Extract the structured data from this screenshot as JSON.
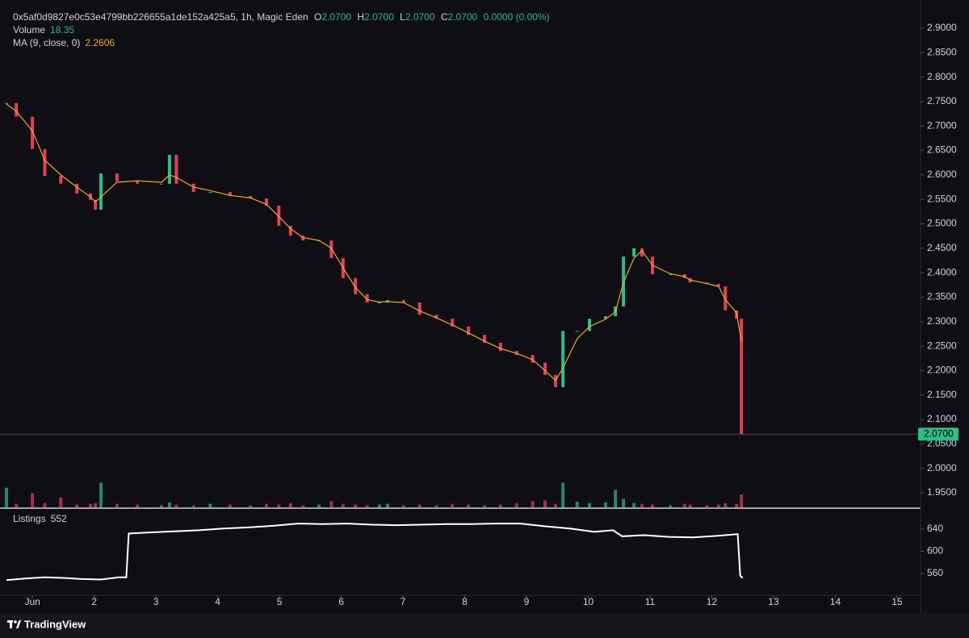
{
  "header": {
    "symbol": "0x5af0d9827e0c53e4799bb226655a1de152a425a5, 1h, Magic Eden",
    "o_label": "O",
    "o_value": "2.0700",
    "h_label": "H",
    "h_value": "2.0700",
    "l_label": "L",
    "l_value": "2.0700",
    "c_label": "C",
    "c_value": "2.0700",
    "change": "0.0000 (0.00%)",
    "volume_label": "Volume",
    "volume_value": "18.35",
    "ma_label": "MA (9, close, 0)",
    "ma_value": "2.2606",
    "brand": "TradingView"
  },
  "chart_data": [
    {
      "type": "candlestick",
      "xlim": [
        0.58,
        15.38
      ],
      "ylim": [
        1.9203,
        2.9445
      ],
      "xticks": [
        {
          "value": 1,
          "label": "Jun"
        },
        2,
        3,
        4,
        5,
        6,
        7,
        8,
        9,
        10,
        11,
        12,
        13,
        14,
        15
      ],
      "yticks": [
        {
          "value": 1.95,
          "label": "1.9500"
        },
        {
          "value": 2,
          "label": "2.0000"
        },
        {
          "value": 2.05,
          "label": "2.0500"
        },
        {
          "value": 2.1,
          "label": "2.1000"
        },
        {
          "value": 2.15,
          "label": "2.1500"
        },
        {
          "value": 2.2,
          "label": "2.2000"
        },
        {
          "value": 2.25,
          "label": "2.2500"
        },
        {
          "value": 2.3,
          "label": "2.3000"
        },
        {
          "value": 2.35,
          "label": "2.3500"
        },
        {
          "value": 2.4,
          "label": "2.4000"
        },
        {
          "value": 2.45,
          "label": "2.4500"
        },
        {
          "value": 2.5,
          "label": "2.5000"
        },
        {
          "value": 2.55,
          "label": "2.5500"
        },
        {
          "value": 2.6,
          "label": "2.6000"
        },
        {
          "value": 2.65,
          "label": "2.6500"
        },
        {
          "value": 2.7,
          "label": "2.7000"
        },
        {
          "value": 2.75,
          "label": "2.7500"
        },
        {
          "value": 2.8,
          "label": "2.8000"
        },
        {
          "value": 2.85,
          "label": "2.8500"
        },
        {
          "value": 2.9,
          "label": "2.9000"
        }
      ],
      "x": [
        0.58,
        0.74,
        1.0,
        1.2,
        1.46,
        1.72,
        1.94,
        2.02,
        2.11,
        2.37,
        2.7,
        3.09,
        3.22,
        3.33,
        3.61,
        3.88,
        4.2,
        4.53,
        4.79,
        4.99,
        5.18,
        5.38,
        5.64,
        5.84,
        6.03,
        6.23,
        6.42,
        6.62,
        6.75,
        7.01,
        7.27,
        7.54,
        7.8,
        8.06,
        8.32,
        8.58,
        8.84,
        9.1,
        9.3,
        9.47,
        9.59,
        9.82,
        10.02,
        10.28,
        10.44,
        10.57,
        10.74,
        10.87,
        11.04,
        11.33,
        11.56,
        11.65,
        11.92,
        12.11,
        12.22,
        12.4,
        12.48
      ],
      "series": [
        {
          "name": "close",
          "up_color": "#2ebd85",
          "down_color": "#e0415a",
          "values": [
            2.747,
            2.719,
            2.653,
            2.598,
            2.582,
            2.562,
            2.549,
            2.529,
            2.603,
            2.587,
            2.582,
            2.582,
            2.641,
            2.582,
            2.565,
            2.565,
            2.557,
            2.552,
            2.537,
            2.496,
            2.476,
            2.466,
            2.466,
            2.43,
            2.389,
            2.356,
            2.339,
            2.339,
            2.344,
            2.339,
            2.314,
            2.306,
            2.29,
            2.273,
            2.257,
            2.24,
            2.232,
            2.216,
            2.191,
            2.166,
            2.281,
            2.281,
            2.306,
            2.311,
            2.331,
            2.433,
            2.45,
            2.433,
            2.397,
            2.397,
            2.389,
            2.38,
            2.377,
            2.372,
            2.323,
            2.306,
            2.07
          ]
        },
        {
          "name": "MA",
          "color": "#f0a830",
          "values": [
            2.745,
            2.73,
            2.69,
            2.63,
            2.6,
            2.575,
            2.555,
            2.545,
            2.555,
            2.585,
            2.588,
            2.585,
            2.6,
            2.595,
            2.575,
            2.568,
            2.558,
            2.553,
            2.54,
            2.515,
            2.49,
            2.472,
            2.466,
            2.45,
            2.41,
            2.37,
            2.345,
            2.34,
            2.341,
            2.339,
            2.322,
            2.308,
            2.293,
            2.277,
            2.26,
            2.245,
            2.235,
            2.222,
            2.2,
            2.18,
            2.205,
            2.265,
            2.29,
            2.305,
            2.32,
            2.38,
            2.43,
            2.445,
            2.415,
            2.398,
            2.392,
            2.385,
            2.378,
            2.372,
            2.345,
            2.318,
            2.2606
          ]
        }
      ],
      "price_label": {
        "value": 2.07,
        "label": "2.0700"
      },
      "price_label_color": "#2ebd85"
    },
    {
      "type": "bar",
      "ylim": [
        0,
        115
      ],
      "values": [
        28,
        5,
        20,
        6,
        14,
        4,
        5,
        6,
        35,
        5,
        4,
        3,
        7,
        4,
        3,
        5,
        4,
        3,
        5,
        4,
        6,
        3,
        4,
        9,
        5,
        4,
        3,
        4,
        5,
        3,
        4,
        3,
        5,
        4,
        3,
        4,
        6,
        9,
        10,
        5,
        35,
        8,
        6,
        7,
        25,
        12,
        6,
        5,
        4,
        3,
        5,
        4,
        3,
        4,
        6,
        5,
        18.35
      ]
    },
    {
      "type": "line",
      "title": "Listings",
      "last_value": "552",
      "color": "#ffffff",
      "xlim": [
        0.58,
        15.38
      ],
      "ylim": [
        520.7,
        677.8
      ],
      "yticks": [
        560,
        600,
        640
      ],
      "x": [
        0.58,
        0.9,
        1.2,
        1.5,
        1.8,
        2.1,
        2.4,
        2.52,
        2.56,
        2.9,
        3.3,
        3.7,
        4.1,
        4.5,
        4.9,
        5.3,
        5.7,
        6.1,
        6.5,
        6.9,
        7.3,
        7.7,
        8.1,
        8.5,
        8.9,
        9.3,
        9.7,
        10.1,
        10.4,
        10.55,
        10.9,
        11.3,
        11.7,
        12.1,
        12.42,
        12.46,
        12.5
      ],
      "values": [
        548,
        551,
        553,
        552,
        550,
        549,
        553,
        553,
        632,
        634,
        636,
        638,
        641,
        643,
        646,
        650,
        649,
        650,
        648,
        647,
        648,
        649,
        649,
        650,
        650,
        645,
        641,
        635,
        638,
        627,
        629,
        626,
        625,
        628,
        631,
        556,
        552
      ]
    }
  ]
}
